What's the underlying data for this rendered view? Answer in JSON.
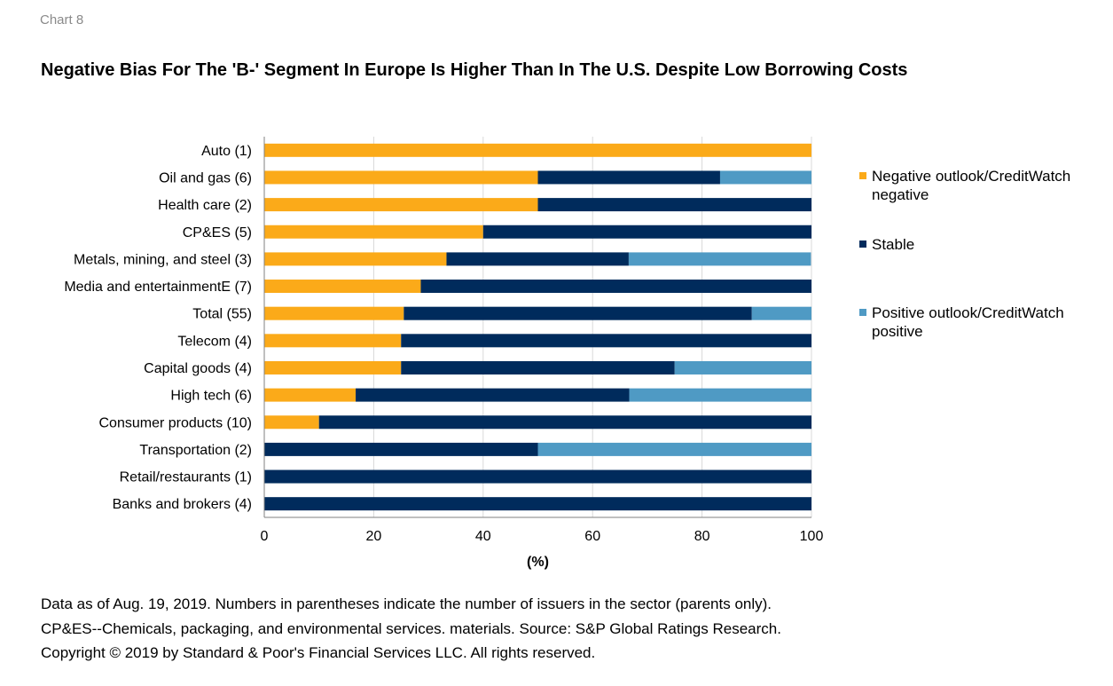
{
  "chart_label": "Chart 8",
  "title": "Negative Bias For The 'B-' Segment In Europe Is Higher Than In The U.S. Despite Low Borrowing Costs",
  "notes": [
    "Data as of Aug. 19, 2019. Numbers in parentheses indicate the number of issuers in the sector (parents only).",
    "CP&ES--Chemicals, packaging, and environmental services. materials. Source: S&P Global Ratings Research.",
    "Copyright © 2019 by Standard & Poor's Financial Services LLC. All rights reserved."
  ],
  "chart_data": {
    "type": "bar",
    "orientation": "horizontal",
    "stacked": true,
    "categories": [
      "Auto (1)",
      "Oil and gas (6)",
      "Health care (2)",
      "CP&ES (5)",
      "Metals, mining, and steel (3)",
      "Media and entertainmentE (7)",
      "Total (55)",
      "Telecom (4)",
      "Capital goods (4)",
      "High tech (6)",
      "Consumer products (10)",
      "Transportation (2)",
      "Retail/restaurants (1)",
      "Banks and brokers (4)"
    ],
    "series": [
      {
        "name": "Negative outlook/CreditWatch negative",
        "color": "#FBAA19",
        "values": [
          100,
          50,
          50,
          40,
          33.3,
          28.6,
          25.5,
          25,
          25,
          16.7,
          10,
          0,
          0,
          0
        ]
      },
      {
        "name": "Stable",
        "color": "#002B5C",
        "values": [
          0,
          33.3,
          50,
          60,
          33.3,
          71.4,
          63.6,
          75,
          50,
          50,
          90,
          50,
          100,
          100
        ]
      },
      {
        "name": "Positive outlook/CreditWatch positive",
        "color": "#4F9AC4",
        "values": [
          0,
          16.7,
          0,
          0,
          33.3,
          0,
          10.9,
          0,
          25,
          33.3,
          0,
          50,
          0,
          0
        ]
      }
    ],
    "x_ticks": [
      "0",
      "20",
      "40",
      "60",
      "80",
      "100"
    ],
    "xlim": [
      0,
      100
    ],
    "xlabel": "(%)",
    "ylabel": "",
    "grid": true,
    "legend_position": "right"
  }
}
